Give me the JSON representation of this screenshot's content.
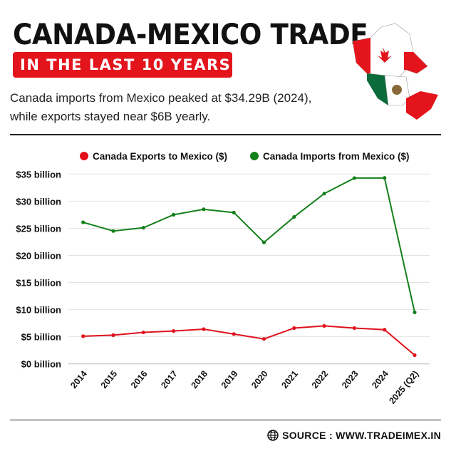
{
  "header": {
    "title": "CANADA-MEXICO TRADE",
    "banner": "IN THE LAST 10 YEARS",
    "subtitle": "Canada imports from Mexico peaked at $34.29B (2024), while exports stayed near $6B yearly."
  },
  "footer": {
    "source": "SOURCE : WWW.TRADEIMEX.IN",
    "icon": "globe-icon"
  },
  "colors": {
    "exports": "#e0111b",
    "imports": "#13801a",
    "banner": "#e3141b"
  },
  "chart_data": {
    "type": "line",
    "categories": [
      "2014",
      "2015",
      "2016",
      "2017",
      "2018",
      "2019",
      "2020",
      "2021",
      "2022",
      "2023",
      "2024",
      "2025 (Q2)"
    ],
    "series": [
      {
        "name": "Canada Exports to Mexico ($)",
        "color": "#e0111b",
        "values": [
          5.1,
          5.3,
          5.8,
          6.05,
          6.4,
          5.5,
          4.6,
          6.6,
          7.0,
          6.6,
          6.3,
          1.6
        ]
      },
      {
        "name": "Canada Imports from Mexico ($)",
        "color": "#13801a",
        "values": [
          26.1,
          24.5,
          25.1,
          27.5,
          28.5,
          27.9,
          22.4,
          27.1,
          31.4,
          34.26,
          34.29,
          9.5
        ]
      }
    ],
    "yticks": [
      "$0 billion",
      "$5 billion",
      "$10 billion",
      "$15 billion",
      "$20 billion",
      "$25 billion",
      "$30 billion",
      "$35 billion"
    ],
    "ylim": [
      0,
      35
    ],
    "grid": true,
    "legend": "top"
  }
}
